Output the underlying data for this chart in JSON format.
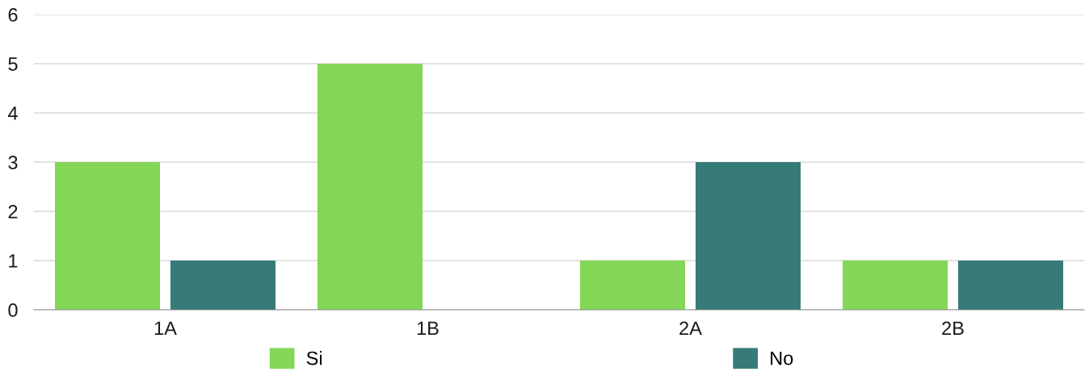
{
  "chart_data": {
    "type": "bar",
    "categories": [
      "1A",
      "1B",
      "2A",
      "2B"
    ],
    "series": [
      {
        "name": "Si",
        "color": "#84d657",
        "values": [
          3,
          5,
          1,
          1
        ]
      },
      {
        "name": "No",
        "color": "#367b77",
        "values": [
          1,
          0,
          3,
          1
        ]
      }
    ],
    "ylim": [
      0,
      6
    ],
    "yticks": [
      0,
      1,
      2,
      3,
      4,
      5,
      6
    ],
    "grid": "y",
    "legend": "bottom"
  }
}
